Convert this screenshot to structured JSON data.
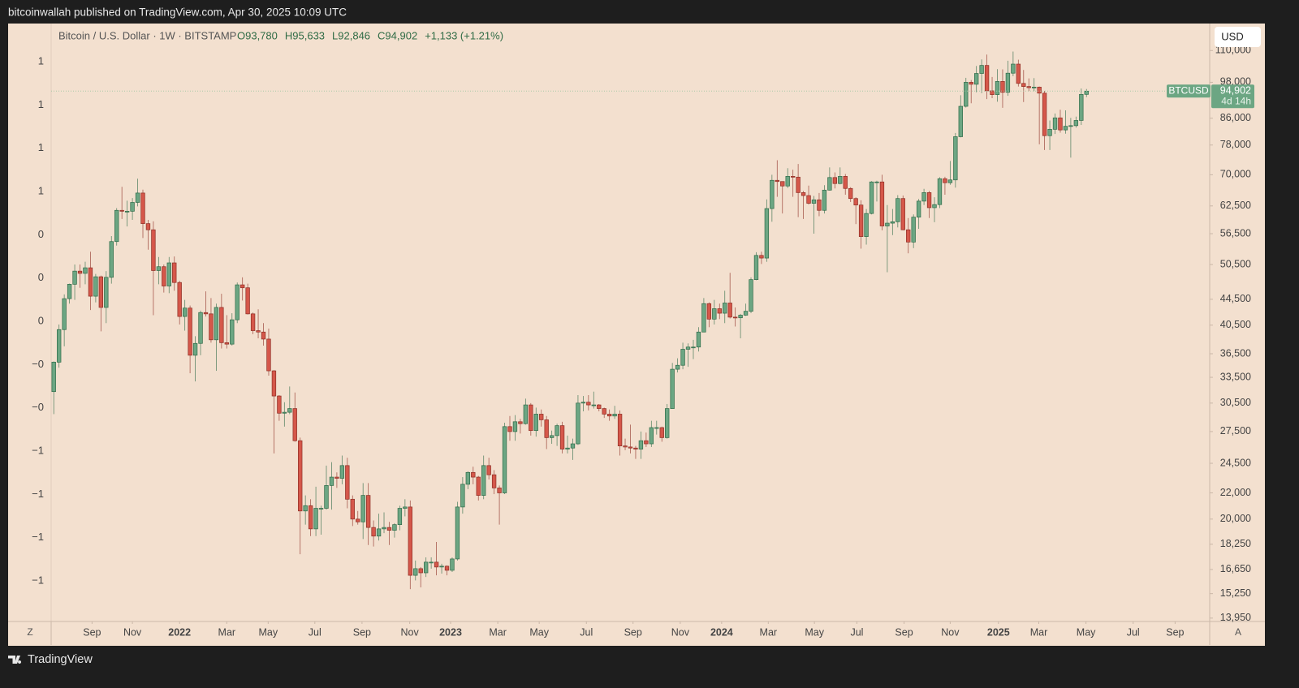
{
  "header": {
    "publisher": "bitcoinwallah published on TradingView.com, Apr 30, 2025 10:09 UTC"
  },
  "footer": {
    "brand": "TradingView"
  },
  "toolbar": {
    "currency": "USD",
    "left_button": "Z",
    "right_button": "A"
  },
  "chart_data": {
    "type": "candlestick",
    "title": "Bitcoin / U.S. Dollar · 1W · BITSTAMP",
    "ohlc_legend": [
      "O93,780",
      "H95,633",
      "L92,846",
      "C94,902",
      "+1,133 (+1.21%)"
    ],
    "log_scale": true,
    "grid": false,
    "up_color": "#6ca683",
    "down_color": "#d5574a",
    "symbol_tag": "BTCUSD",
    "last_price": {
      "value": 94902,
      "label": "94,902"
    },
    "countdown": "4d 14h",
    "left_axis_labels": [
      "1",
      "1",
      "1",
      "1",
      "0",
      "0",
      "0",
      "−0",
      "−0",
      "−1",
      "−1",
      "−1",
      "−1"
    ],
    "ylim": [
      13780,
      121000
    ],
    "yticks": [
      {
        "value": 110000,
        "label": "110,000"
      },
      {
        "value": 98000,
        "label": "98,000"
      },
      {
        "value": 86000,
        "label": "86,000"
      },
      {
        "value": 78000,
        "label": "78,000"
      },
      {
        "value": 70000,
        "label": "70,000"
      },
      {
        "value": 62500,
        "label": "62,500"
      },
      {
        "value": 56500,
        "label": "56,500"
      },
      {
        "value": 50500,
        "label": "50,500"
      },
      {
        "value": 44500,
        "label": "44,500"
      },
      {
        "value": 40500,
        "label": "40,500"
      },
      {
        "value": 36500,
        "label": "36,500"
      },
      {
        "value": 33500,
        "label": "33,500"
      },
      {
        "value": 30500,
        "label": "30,500"
      },
      {
        "value": 27500,
        "label": "27,500"
      },
      {
        "value": 24500,
        "label": "24,500"
      },
      {
        "value": 22000,
        "label": "22,000"
      },
      {
        "value": 20000,
        "label": "20,000"
      },
      {
        "value": 18250,
        "label": "18,250"
      },
      {
        "value": 16650,
        "label": "16,650"
      },
      {
        "value": 15250,
        "label": "15,250"
      },
      {
        "value": 13950,
        "label": "13,950"
      }
    ],
    "xlim": [
      -0.5,
      220.5
    ],
    "xticks": [
      {
        "value": 7.3,
        "label": "Sep"
      },
      {
        "value": 15,
        "label": "Nov"
      },
      {
        "value": 24,
        "label": "2022"
      },
      {
        "value": 33,
        "label": "Mar"
      },
      {
        "value": 40.9,
        "label": "May"
      },
      {
        "value": 49.8,
        "label": "Jul"
      },
      {
        "value": 58.8,
        "label": "Sep"
      },
      {
        "value": 67.9,
        "label": "Nov"
      },
      {
        "value": 75.7,
        "label": "2023"
      },
      {
        "value": 84.7,
        "label": "Mar"
      },
      {
        "value": 92.6,
        "label": "May"
      },
      {
        "value": 101.6,
        "label": "Jul"
      },
      {
        "value": 110.5,
        "label": "Sep"
      },
      {
        "value": 119.5,
        "label": "Nov"
      },
      {
        "value": 127.4,
        "label": "2024"
      },
      {
        "value": 136.3,
        "label": "Mar"
      },
      {
        "value": 145.1,
        "label": "May"
      },
      {
        "value": 153.2,
        "label": "Jul"
      },
      {
        "value": 162.2,
        "label": "Sep"
      },
      {
        "value": 171,
        "label": "Nov"
      },
      {
        "value": 180.2,
        "label": "2025"
      },
      {
        "value": 187.9,
        "label": "Mar"
      },
      {
        "value": 196.9,
        "label": "May"
      },
      {
        "value": 205.9,
        "label": "Jul"
      },
      {
        "value": 213.9,
        "label": "Sep"
      }
    ],
    "candles": [
      [
        31800,
        35500,
        29300,
        35400
      ],
      [
        35400,
        40600,
        34700,
        39850
      ],
      [
        39850,
        45300,
        37500,
        44600
      ],
      [
        44600,
        47100,
        43800,
        47000
      ],
      [
        47000,
        50500,
        44400,
        49300
      ],
      [
        49300,
        50500,
        46400,
        48900
      ],
      [
        48900,
        51000,
        47000,
        49900
      ],
      [
        49900,
        52900,
        42800,
        45000
      ],
      [
        45000,
        48800,
        44000,
        48300
      ],
      [
        48300,
        48500,
        39600,
        43200
      ],
      [
        43200,
        49300,
        40800,
        48200
      ],
      [
        48200,
        56000,
        47100,
        54900
      ],
      [
        54900,
        62000,
        54100,
        61500
      ],
      [
        61500,
        67000,
        59600,
        61300
      ],
      [
        61300,
        63700,
        58000,
        61300
      ],
      [
        61300,
        64300,
        59400,
        63300
      ],
      [
        63300,
        69000,
        62400,
        65500
      ],
      [
        65500,
        66300,
        55600,
        58600
      ],
      [
        58600,
        59400,
        53300,
        57300
      ],
      [
        57300,
        59100,
        42000,
        49400
      ],
      [
        49400,
        51900,
        47000,
        50100
      ],
      [
        50100,
        50500,
        45600,
        46700
      ],
      [
        46700,
        51900,
        45500,
        50800
      ],
      [
        50800,
        52000,
        45900,
        47300
      ],
      [
        47300,
        47600,
        40600,
        41800
      ],
      [
        41800,
        44400,
        39700,
        43100
      ],
      [
        43100,
        43500,
        34000,
        36300
      ],
      [
        36300,
        38900,
        33000,
        37900
      ],
      [
        37900,
        42700,
        36300,
        42400
      ],
      [
        42400,
        45800,
        41800,
        42200
      ],
      [
        42200,
        44700,
        38000,
        38400
      ],
      [
        38400,
        43800,
        34300,
        43200
      ],
      [
        43200,
        45400,
        37200,
        38000
      ],
      [
        38000,
        42000,
        37200,
        37800
      ],
      [
        37800,
        42300,
        37600,
        41300
      ],
      [
        41300,
        47300,
        40800,
        46900
      ],
      [
        46900,
        48200,
        44300,
        46400
      ],
      [
        46400,
        47100,
        42100,
        42200
      ],
      [
        42200,
        42400,
        39200,
        39700
      ],
      [
        39700,
        42900,
        38600,
        39500
      ],
      [
        39500,
        40800,
        37600,
        38500
      ],
      [
        38500,
        40000,
        33700,
        34300
      ],
      [
        34300,
        34400,
        25400,
        31300
      ],
      [
        31300,
        31400,
        28600,
        29400
      ],
      [
        29400,
        30600,
        28000,
        29500
      ],
      [
        29500,
        32400,
        29300,
        29900
      ],
      [
        29900,
        31700,
        26500,
        26600
      ],
      [
        26600,
        26900,
        17600,
        20600
      ],
      [
        20600,
        21800,
        19600,
        21000
      ],
      [
        21000,
        21500,
        18800,
        19300
      ],
      [
        19300,
        22500,
        18800,
        20800
      ],
      [
        20800,
        21000,
        18900,
        20800
      ],
      [
        20800,
        24300,
        20700,
        22600
      ],
      [
        22600,
        24600,
        20700,
        23300
      ],
      [
        23300,
        23700,
        22400,
        23200
      ],
      [
        23200,
        25200,
        22700,
        24300
      ],
      [
        24300,
        25000,
        20800,
        21500
      ],
      [
        21500,
        21800,
        19500,
        20000
      ],
      [
        20000,
        20600,
        19600,
        19800
      ],
      [
        19800,
        22800,
        18600,
        21800
      ],
      [
        21800,
        22800,
        18200,
        19400
      ],
      [
        19400,
        19900,
        18100,
        18800
      ],
      [
        18800,
        20400,
        18500,
        19300
      ],
      [
        19300,
        20500,
        19000,
        19400
      ],
      [
        19400,
        19800,
        18200,
        19200
      ],
      [
        19200,
        19700,
        18700,
        19600
      ],
      [
        19600,
        21000,
        19200,
        20800
      ],
      [
        20800,
        21500,
        20200,
        20900
      ],
      [
        20900,
        21400,
        15500,
        16300
      ],
      [
        16300,
        17200,
        16000,
        16700
      ],
      [
        16700,
        16800,
        15600,
        16450
      ],
      [
        16450,
        17400,
        16200,
        17100
      ],
      [
        17100,
        17400,
        16700,
        17100
      ],
      [
        17100,
        18400,
        16300,
        16800
      ],
      [
        16800,
        17000,
        16400,
        16850
      ],
      [
        16850,
        16900,
        16300,
        16600
      ],
      [
        16600,
        17400,
        16500,
        17300
      ],
      [
        17300,
        21300,
        17200,
        20900
      ],
      [
        20900,
        23300,
        20400,
        22700
      ],
      [
        22700,
        23800,
        22300,
        23700
      ],
      [
        23700,
        24200,
        22700,
        23300
      ],
      [
        23300,
        23400,
        21400,
        21800
      ],
      [
        21800,
        25200,
        21500,
        24300
      ],
      [
        24300,
        25000,
        23100,
        23500
      ],
      [
        23500,
        23900,
        21900,
        22400
      ],
      [
        22400,
        22600,
        19600,
        22000
      ],
      [
        22000,
        28400,
        21900,
        28000
      ],
      [
        28000,
        29100,
        26600,
        27500
      ],
      [
        27500,
        29200,
        26600,
        28500
      ],
      [
        28500,
        28800,
        27300,
        28300
      ],
      [
        28300,
        31000,
        28200,
        30300
      ],
      [
        30300,
        30500,
        27100,
        27600
      ],
      [
        27600,
        30000,
        27000,
        29300
      ],
      [
        29300,
        29800,
        28000,
        28700
      ],
      [
        28700,
        29100,
        25800,
        26900
      ],
      [
        26900,
        27600,
        26300,
        27100
      ],
      [
        27100,
        28300,
        26100,
        28100
      ],
      [
        28100,
        28500,
        25400,
        25800
      ],
      [
        25800,
        27100,
        25400,
        25900
      ],
      [
        25900,
        26800,
        24800,
        26300
      ],
      [
        26300,
        31400,
        26200,
        30500
      ],
      [
        30500,
        31300,
        29600,
        30600
      ],
      [
        30600,
        31400,
        29700,
        30300
      ],
      [
        30300,
        31800,
        29900,
        30300
      ],
      [
        30300,
        30400,
        29600,
        29900
      ],
      [
        29900,
        30000,
        28900,
        29300
      ],
      [
        29300,
        29800,
        28600,
        29100
      ],
      [
        29100,
        30200,
        28800,
        29300
      ],
      [
        29300,
        29700,
        25200,
        26100
      ],
      [
        26100,
        26800,
        25700,
        26000
      ],
      [
        26000,
        28200,
        25400,
        25900
      ],
      [
        25900,
        26100,
        24900,
        25800
      ],
      [
        25800,
        27500,
        24900,
        26600
      ],
      [
        26600,
        27400,
        26000,
        26300
      ],
      [
        26300,
        28600,
        26000,
        27900
      ],
      [
        27900,
        28600,
        27200,
        27900
      ],
      [
        27900,
        28000,
        26500,
        26900
      ],
      [
        26900,
        30400,
        26800,
        29900
      ],
      [
        29900,
        35300,
        29900,
        34500
      ],
      [
        34500,
        35900,
        34100,
        35000
      ],
      [
        35000,
        38000,
        34500,
        37100
      ],
      [
        37100,
        37900,
        34800,
        37400
      ],
      [
        37400,
        38400,
        35800,
        37400
      ],
      [
        37400,
        40200,
        36800,
        39500
      ],
      [
        39500,
        44700,
        39500,
        43800
      ],
      [
        43800,
        44000,
        40200,
        41400
      ],
      [
        41400,
        44400,
        40600,
        43000
      ],
      [
        43000,
        43800,
        41400,
        42300
      ],
      [
        42300,
        45900,
        40800,
        43900
      ],
      [
        43900,
        49000,
        41500,
        41700
      ],
      [
        41700,
        43200,
        40300,
        41600
      ],
      [
        41600,
        42200,
        38600,
        42000
      ],
      [
        42000,
        43800,
        41900,
        42600
      ],
      [
        42600,
        48200,
        42300,
        47800
      ],
      [
        47800,
        52800,
        47700,
        52200
      ],
      [
        52200,
        52900,
        50600,
        51700
      ],
      [
        51700,
        64000,
        51000,
        61900
      ],
      [
        61900,
        70000,
        59000,
        68600
      ],
      [
        68600,
        73800,
        64600,
        68300
      ],
      [
        68300,
        68300,
        60800,
        67200
      ],
      [
        67200,
        71700,
        66700,
        69600
      ],
      [
        69600,
        71300,
        64600,
        69400
      ],
      [
        69400,
        72800,
        60000,
        65600
      ],
      [
        65600,
        66000,
        59600,
        64900
      ],
      [
        64900,
        67300,
        62800,
        63100
      ],
      [
        63100,
        64800,
        56500,
        63900
      ],
      [
        63900,
        65500,
        60200,
        61500
      ],
      [
        61500,
        67400,
        60800,
        66200
      ],
      [
        66200,
        71900,
        66100,
        69300
      ],
      [
        69300,
        70600,
        66600,
        67800
      ],
      [
        67800,
        71900,
        67600,
        69600
      ],
      [
        69600,
        70200,
        65100,
        66600
      ],
      [
        66600,
        66900,
        63400,
        64200
      ],
      [
        64200,
        64500,
        58500,
        62700
      ],
      [
        62700,
        63800,
        53500,
        55900
      ],
      [
        55900,
        61800,
        54300,
        60800
      ],
      [
        60800,
        68400,
        60600,
        68200
      ],
      [
        68200,
        68500,
        63500,
        68200
      ],
      [
        68200,
        70000,
        57200,
        58100
      ],
      [
        58100,
        62700,
        49100,
        58700
      ],
      [
        58700,
        61800,
        56200,
        59000
      ],
      [
        59000,
        65000,
        57800,
        64200
      ],
      [
        64200,
        64900,
        57200,
        57300
      ],
      [
        57300,
        59800,
        52600,
        54800
      ],
      [
        54800,
        60600,
        53600,
        60000
      ],
      [
        60000,
        64100,
        57500,
        63600
      ],
      [
        63600,
        66500,
        62700,
        65600
      ],
      [
        65600,
        66000,
        59800,
        62100
      ],
      [
        62100,
        64500,
        58900,
        62800
      ],
      [
        62800,
        69400,
        62000,
        69000
      ],
      [
        69000,
        69500,
        65100,
        68000
      ],
      [
        68000,
        73600,
        67500,
        68700
      ],
      [
        68700,
        81500,
        66800,
        80400
      ],
      [
        80400,
        93500,
        80200,
        89800
      ],
      [
        89800,
        99600,
        89400,
        98000
      ],
      [
        98000,
        98800,
        90800,
        97300
      ],
      [
        97300,
        104000,
        94500,
        101200
      ],
      [
        101200,
        106500,
        94200,
        104200
      ],
      [
        104200,
        108400,
        92200,
        95000
      ],
      [
        95000,
        99900,
        92500,
        93700
      ],
      [
        93700,
        102800,
        91300,
        98300
      ],
      [
        98300,
        102700,
        89300,
        94500
      ],
      [
        94500,
        106000,
        93300,
        101300
      ],
      [
        101300,
        109600,
        100200,
        104700
      ],
      [
        104700,
        106400,
        96500,
        97600
      ],
      [
        97600,
        102500,
        91200,
        96500
      ],
      [
        96500,
        99400,
        94900,
        96100
      ],
      [
        96100,
        99500,
        94900,
        96300
      ],
      [
        96300,
        96500,
        78200,
        94200
      ],
      [
        94200,
        95000,
        76600,
        80700
      ],
      [
        80700,
        85300,
        76600,
        82600
      ],
      [
        82600,
        87500,
        81200,
        86100
      ],
      [
        86100,
        88700,
        81600,
        82400
      ],
      [
        82400,
        88500,
        81300,
        83500
      ],
      [
        83500,
        86100,
        74500,
        83700
      ],
      [
        83700,
        86500,
        83100,
        85300
      ],
      [
        85300,
        95800,
        83900,
        93780
      ],
      [
        93780,
        95633,
        92846,
        94902
      ]
    ]
  }
}
